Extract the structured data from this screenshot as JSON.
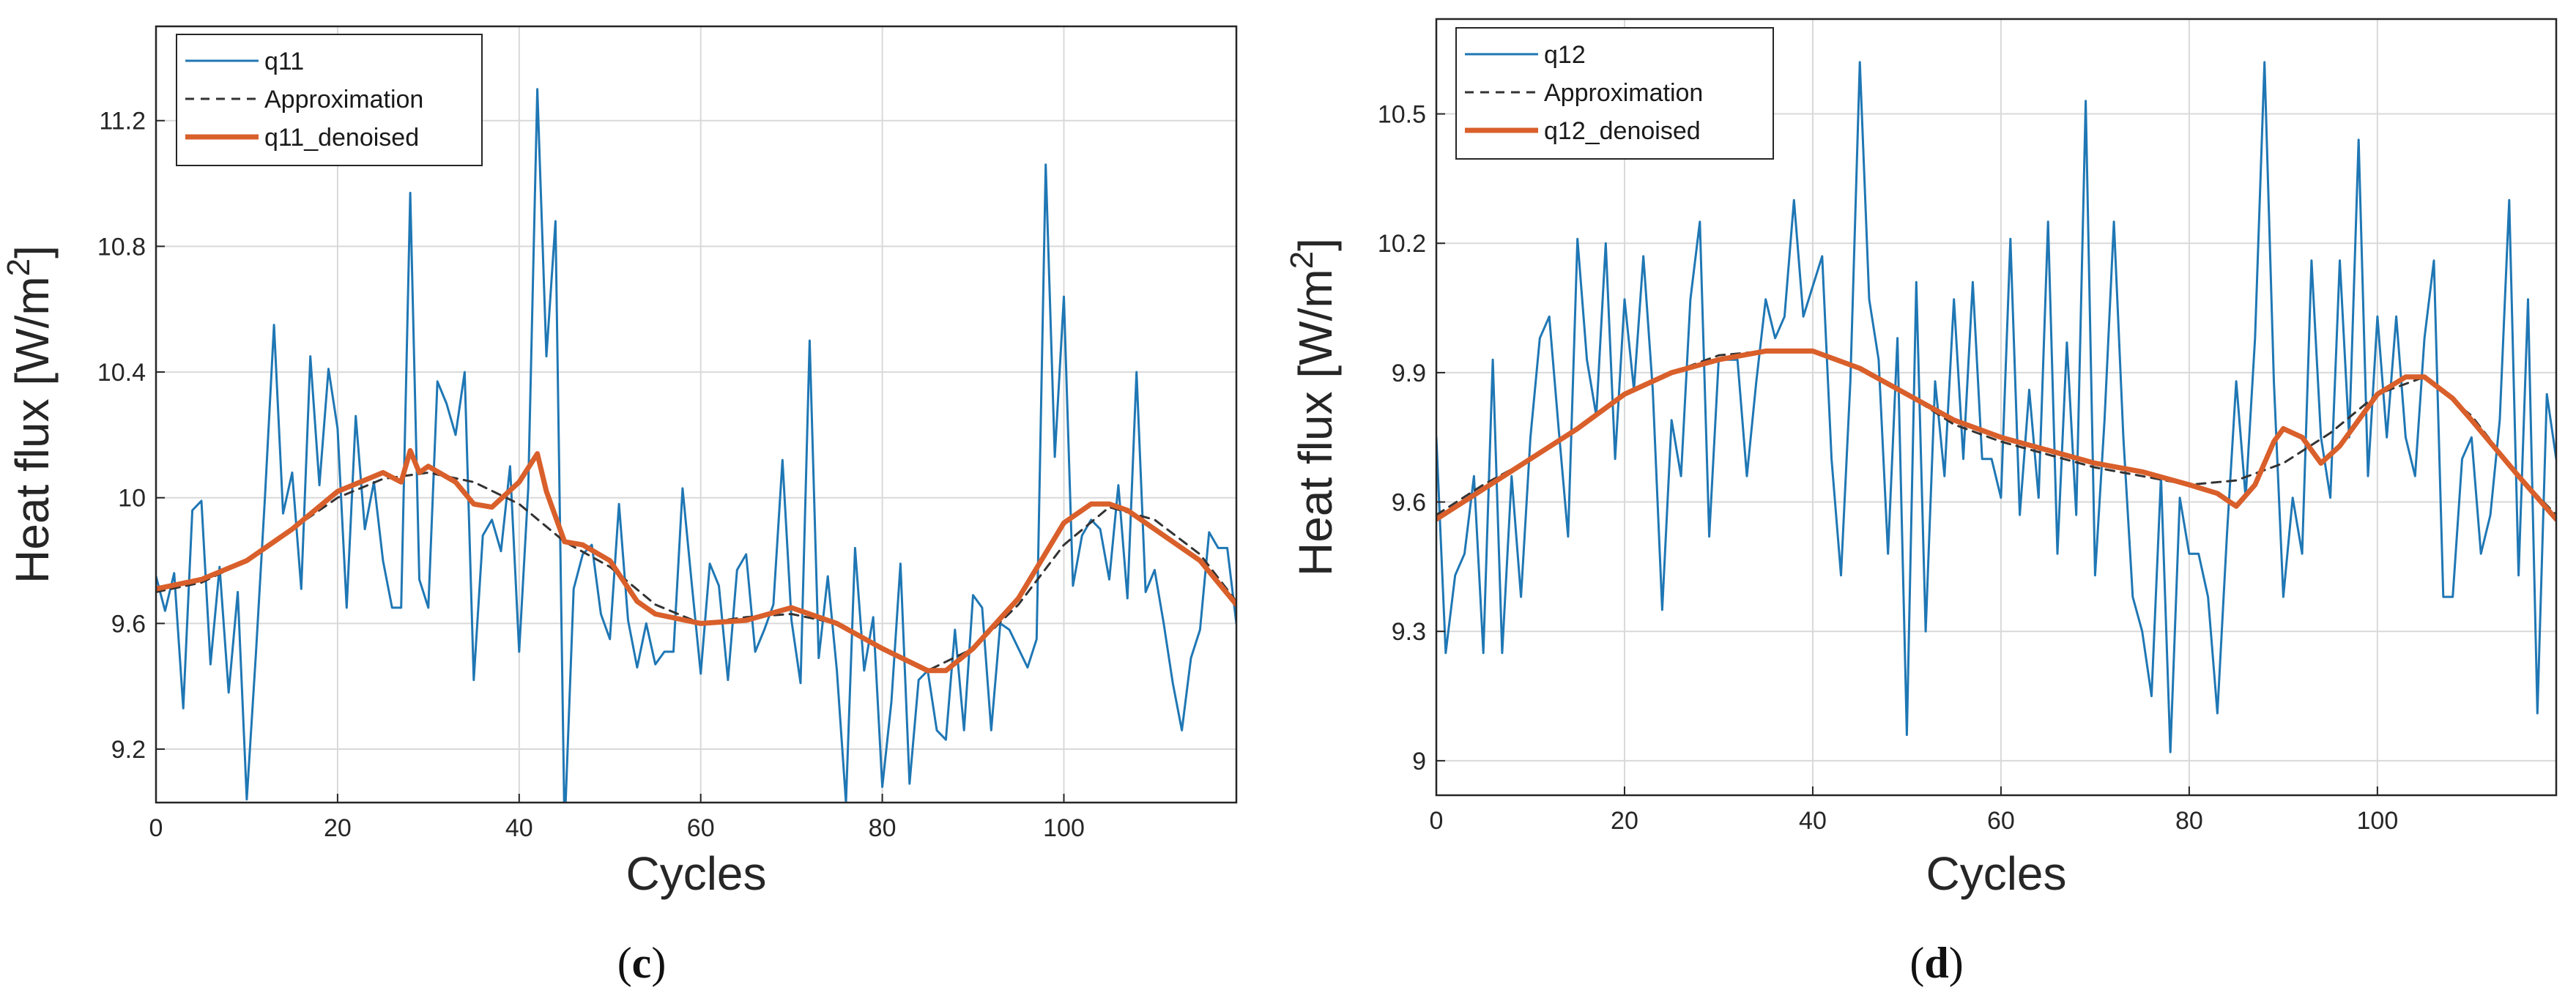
{
  "chart_data": [
    {
      "type": "line",
      "panel_label": "(c)",
      "panel_letter": "c",
      "xlabel": "Cycles",
      "ylabel": "Heat flux [W/m",
      "ylabel_sup": "2",
      "ylabel_end": "]",
      "xlim": [
        0,
        119
      ],
      "ylim": [
        9.03,
        11.5
      ],
      "xticks": [
        0,
        20,
        40,
        60,
        80,
        100
      ],
      "yticks": [
        9.2,
        9.6,
        10,
        10.4,
        10.8,
        11.2
      ],
      "ytick_labels": [
        "9.2",
        "9.6",
        "10",
        "10.4",
        "10.8",
        "11.2"
      ],
      "grid": true,
      "legend_position": "top-left",
      "colors": {
        "raw": "#1f77b4",
        "approx": "#333333",
        "denoised": "#d95f2b"
      },
      "series": [
        {
          "name": "q11",
          "style": "raw",
          "x": [
            0,
            1,
            2,
            3,
            4,
            5,
            6,
            7,
            8,
            9,
            10,
            11,
            12,
            13,
            14,
            15,
            16,
            17,
            18,
            19,
            20,
            21,
            22,
            23,
            24,
            25,
            26,
            27,
            28,
            29,
            30,
            31,
            32,
            33,
            34,
            35,
            36,
            37,
            38,
            39,
            40,
            41,
            42,
            43,
            44,
            45,
            46,
            47,
            48,
            49,
            50,
            51,
            52,
            53,
            54,
            55,
            56,
            57,
            58,
            59,
            60,
            61,
            62,
            63,
            64,
            65,
            66,
            67,
            68,
            69,
            70,
            71,
            72,
            73,
            74,
            75,
            76,
            77,
            78,
            79,
            80,
            81,
            82,
            83,
            84,
            85,
            86,
            87,
            88,
            89,
            90,
            91,
            92,
            93,
            94,
            95,
            96,
            97,
            98,
            99,
            100,
            101,
            102,
            103,
            104,
            105,
            106,
            107,
            108,
            109,
            110,
            111,
            112,
            113,
            114,
            115,
            116,
            117,
            118,
            119
          ],
          "values": [
            9.75,
            9.64,
            9.76,
            9.33,
            9.96,
            9.99,
            9.47,
            9.78,
            9.38,
            9.7,
            9.04,
            9.5,
            10.0,
            10.55,
            9.95,
            10.08,
            9.71,
            10.45,
            10.04,
            10.41,
            10.22,
            9.65,
            10.26,
            9.9,
            10.05,
            9.8,
            9.65,
            9.65,
            10.97,
            9.74,
            9.65,
            10.37,
            10.3,
            10.2,
            10.4,
            9.42,
            9.88,
            9.93,
            9.83,
            10.1,
            9.51,
            10.03,
            11.3,
            10.45,
            10.88,
            8.94,
            9.71,
            9.82,
            9.85,
            9.63,
            9.55,
            9.98,
            9.61,
            9.46,
            9.6,
            9.47,
            9.51,
            9.51,
            10.03,
            9.73,
            9.44,
            9.79,
            9.72,
            9.42,
            9.77,
            9.82,
            9.51,
            9.58,
            9.66,
            10.12,
            9.61,
            9.41,
            10.5,
            9.49,
            9.75,
            9.45,
            9.03,
            9.84,
            9.45,
            9.62,
            9.08,
            9.35,
            9.79,
            9.09,
            9.42,
            9.45,
            9.26,
            9.23,
            9.58,
            9.26,
            9.69,
            9.65,
            9.26,
            9.6,
            9.58,
            9.52,
            9.46,
            9.55,
            11.06,
            10.13,
            10.64,
            9.72,
            9.88,
            9.93,
            9.9,
            9.74,
            10.04,
            9.68,
            10.4,
            9.7,
            9.77,
            9.6,
            9.41,
            9.26,
            9.49,
            9.58,
            9.89,
            9.84,
            9.84,
            9.6
          ]
        },
        {
          "name": "Approximation",
          "style": "approx",
          "x": [
            0,
            5,
            10,
            15,
            20,
            25,
            30,
            35,
            40,
            45,
            50,
            55,
            60,
            65,
            70,
            75,
            80,
            85,
            90,
            95,
            100,
            105,
            110,
            115,
            119
          ],
          "values": [
            9.7,
            9.73,
            9.8,
            9.9,
            10.0,
            10.06,
            10.08,
            10.05,
            9.98,
            9.86,
            9.78,
            9.66,
            9.6,
            9.62,
            9.63,
            9.6,
            9.52,
            9.45,
            9.52,
            9.66,
            9.85,
            9.97,
            9.93,
            9.82,
            9.67
          ]
        },
        {
          "name": "q11_denoised",
          "style": "denoised",
          "x": [
            0,
            5,
            10,
            15,
            20,
            25,
            27,
            28,
            29,
            30,
            33,
            35,
            37,
            40,
            42,
            43,
            45,
            47,
            50,
            53,
            55,
            60,
            65,
            70,
            75,
            80,
            85,
            87,
            90,
            95,
            100,
            103,
            105,
            107,
            110,
            115,
            119
          ],
          "values": [
            9.71,
            9.74,
            9.8,
            9.9,
            10.02,
            10.08,
            10.05,
            10.15,
            10.08,
            10.1,
            10.05,
            9.98,
            9.97,
            10.05,
            10.14,
            10.02,
            9.86,
            9.85,
            9.8,
            9.67,
            9.63,
            9.6,
            9.61,
            9.65,
            9.6,
            9.52,
            9.45,
            9.45,
            9.52,
            9.68,
            9.92,
            9.98,
            9.98,
            9.96,
            9.9,
            9.8,
            9.66
          ]
        }
      ]
    },
    {
      "type": "line",
      "panel_label": "(d)",
      "panel_letter": "d",
      "xlabel": "Cycles",
      "ylabel": "Heat flux [W/m",
      "ylabel_sup": "2",
      "ylabel_end": "]",
      "xlim": [
        0,
        119
      ],
      "ylim": [
        8.92,
        10.72
      ],
      "xticks": [
        0,
        20,
        40,
        60,
        80,
        100
      ],
      "yticks": [
        9.0,
        9.3,
        9.6,
        9.9,
        10.2,
        10.5
      ],
      "ytick_labels": [
        "9",
        "9.3",
        "9.6",
        "9.9",
        "10.2",
        "10.5"
      ],
      "grid": true,
      "legend_position": "top-left",
      "colors": {
        "raw": "#1f77b4",
        "approx": "#333333",
        "denoised": "#d95f2b"
      },
      "series": [
        {
          "name": "q12",
          "style": "raw",
          "x": [
            0,
            1,
            2,
            3,
            4,
            5,
            6,
            7,
            8,
            9,
            10,
            11,
            12,
            13,
            14,
            15,
            16,
            17,
            18,
            19,
            20,
            21,
            22,
            23,
            24,
            25,
            26,
            27,
            28,
            29,
            30,
            31,
            32,
            33,
            34,
            35,
            36,
            37,
            38,
            39,
            40,
            41,
            42,
            43,
            44,
            45,
            46,
            47,
            48,
            49,
            50,
            51,
            52,
            53,
            54,
            55,
            56,
            57,
            58,
            59,
            60,
            61,
            62,
            63,
            64,
            65,
            66,
            67,
            68,
            69,
            70,
            71,
            72,
            73,
            74,
            75,
            76,
            77,
            78,
            79,
            80,
            81,
            82,
            83,
            84,
            85,
            86,
            87,
            88,
            89,
            90,
            91,
            92,
            93,
            94,
            95,
            96,
            97,
            98,
            99,
            100,
            101,
            102,
            103,
            104,
            105,
            106,
            107,
            108,
            109,
            110,
            111,
            112,
            113,
            114,
            115,
            116,
            117,
            118,
            119
          ],
          "values": [
            9.75,
            9.25,
            9.43,
            9.48,
            9.66,
            9.25,
            9.93,
            9.25,
            9.66,
            9.38,
            9.75,
            9.98,
            10.03,
            9.77,
            9.52,
            10.21,
            9.93,
            9.8,
            10.2,
            9.7,
            10.07,
            9.86,
            10.17,
            9.86,
            9.35,
            9.79,
            9.66,
            10.07,
            10.25,
            9.52,
            9.93,
            9.93,
            9.93,
            9.66,
            9.88,
            10.07,
            9.98,
            10.03,
            10.3,
            10.03,
            10.1,
            10.17,
            9.7,
            9.43,
            9.88,
            10.62,
            10.07,
            9.93,
            9.48,
            9.98,
            9.06,
            10.11,
            9.3,
            9.88,
            9.66,
            10.07,
            9.7,
            10.11,
            9.7,
            9.7,
            9.61,
            10.21,
            9.57,
            9.86,
            9.61,
            10.25,
            9.48,
            9.97,
            9.57,
            10.53,
            9.43,
            9.79,
            10.25,
            9.75,
            9.38,
            9.3,
            9.15,
            9.66,
            9.02,
            9.61,
            9.48,
            9.48,
            9.38,
            9.11,
            9.52,
            9.88,
            9.61,
            9.98,
            10.62,
            9.88,
            9.38,
            9.61,
            9.48,
            10.16,
            9.75,
            9.61,
            10.16,
            9.75,
            10.44,
            9.66,
            10.03,
            9.75,
            10.03,
            9.75,
            9.66,
            9.98,
            10.16,
            9.38,
            9.38,
            9.7,
            9.75,
            9.48,
            9.57,
            9.79,
            10.3,
            9.43,
            10.07,
            9.11,
            9.85,
            9.7
          ]
        },
        {
          "name": "Approximation",
          "style": "approx",
          "x": [
            0,
            5,
            10,
            15,
            20,
            25,
            30,
            35,
            40,
            45,
            50,
            55,
            60,
            65,
            70,
            75,
            80,
            85,
            90,
            95,
            100,
            105,
            110,
            115,
            119
          ],
          "values": [
            9.57,
            9.64,
            9.7,
            9.77,
            9.85,
            9.9,
            9.94,
            9.95,
            9.95,
            9.91,
            9.85,
            9.78,
            9.74,
            9.71,
            9.68,
            9.66,
            9.64,
            9.65,
            9.69,
            9.76,
            9.85,
            9.89,
            9.8,
            9.66,
            9.57
          ]
        },
        {
          "name": "q12_denoised",
          "style": "denoised",
          "x": [
            0,
            5,
            10,
            15,
            20,
            25,
            30,
            35,
            40,
            45,
            50,
            55,
            60,
            65,
            70,
            75,
            80,
            83,
            85,
            87,
            89,
            90,
            92,
            94,
            96,
            100,
            103,
            105,
            108,
            110,
            115,
            119
          ],
          "values": [
            9.56,
            9.63,
            9.7,
            9.77,
            9.85,
            9.9,
            9.93,
            9.95,
            9.95,
            9.91,
            9.85,
            9.79,
            9.75,
            9.72,
            9.69,
            9.67,
            9.64,
            9.62,
            9.59,
            9.64,
            9.74,
            9.77,
            9.75,
            9.69,
            9.73,
            9.85,
            9.89,
            9.89,
            9.84,
            9.79,
            9.66,
            9.56
          ]
        }
      ]
    }
  ]
}
